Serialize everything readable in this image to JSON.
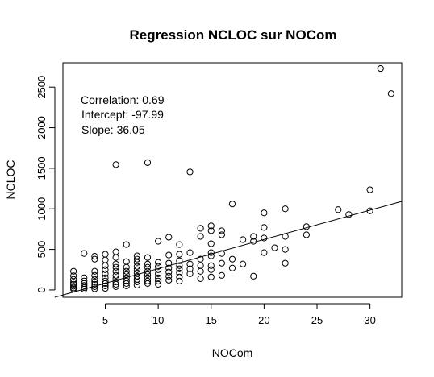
{
  "chart_data": {
    "type": "scatter",
    "title": "Regression NCLOC sur NOCom",
    "xlabel": "NOCom",
    "ylabel": "NCLOC",
    "xlim": [
      1,
      33
    ],
    "ylim": [
      -90,
      2800
    ],
    "x_ticks": [
      5,
      10,
      15,
      20,
      25,
      30
    ],
    "y_ticks": [
      0,
      500,
      1000,
      1500,
      2000,
      2500
    ],
    "annotations": [
      "Correlation: 0.69",
      "Intercept: -97.99",
      "Slope: 36.05"
    ],
    "regression": {
      "intercept": -97.99,
      "slope": 36.05
    },
    "marker": "open-circle",
    "grid": false,
    "points": [
      [
        2,
        230
      ],
      [
        2,
        175
      ],
      [
        2,
        130
      ],
      [
        2,
        95
      ],
      [
        2,
        70
      ],
      [
        2,
        45
      ],
      [
        2,
        25
      ],
      [
        2,
        10
      ],
      [
        3,
        450
      ],
      [
        3,
        150
      ],
      [
        3,
        110
      ],
      [
        3,
        80
      ],
      [
        3,
        55
      ],
      [
        3,
        30
      ],
      [
        3,
        10
      ],
      [
        4,
        415
      ],
      [
        4,
        380
      ],
      [
        4,
        230
      ],
      [
        4,
        180
      ],
      [
        4,
        130
      ],
      [
        4,
        100
      ],
      [
        4,
        70
      ],
      [
        4,
        40
      ],
      [
        4,
        15
      ],
      [
        5,
        440
      ],
      [
        5,
        370
      ],
      [
        5,
        300
      ],
      [
        5,
        250
      ],
      [
        5,
        200
      ],
      [
        5,
        150
      ],
      [
        5,
        110
      ],
      [
        5,
        80
      ],
      [
        5,
        50
      ],
      [
        5,
        20
      ],
      [
        6,
        1545
      ],
      [
        6,
        470
      ],
      [
        6,
        400
      ],
      [
        6,
        320
      ],
      [
        6,
        280
      ],
      [
        6,
        230
      ],
      [
        6,
        180
      ],
      [
        6,
        140
      ],
      [
        6,
        100
      ],
      [
        6,
        70
      ],
      [
        6,
        40
      ],
      [
        7,
        560
      ],
      [
        7,
        350
      ],
      [
        7,
        280
      ],
      [
        7,
        230
      ],
      [
        7,
        190
      ],
      [
        7,
        150
      ],
      [
        7,
        110
      ],
      [
        7,
        80
      ],
      [
        7,
        50
      ],
      [
        8,
        420
      ],
      [
        8,
        380
      ],
      [
        8,
        340
      ],
      [
        8,
        290
      ],
      [
        8,
        250
      ],
      [
        8,
        210
      ],
      [
        8,
        170
      ],
      [
        8,
        130
      ],
      [
        8,
        100
      ],
      [
        8,
        60
      ],
      [
        9,
        1570
      ],
      [
        9,
        400
      ],
      [
        9,
        320
      ],
      [
        9,
        280
      ],
      [
        9,
        230
      ],
      [
        9,
        190
      ],
      [
        9,
        150
      ],
      [
        9,
        110
      ],
      [
        9,
        80
      ],
      [
        10,
        600
      ],
      [
        10,
        340
      ],
      [
        10,
        290
      ],
      [
        10,
        250
      ],
      [
        10,
        200
      ],
      [
        10,
        150
      ],
      [
        10,
        110
      ],
      [
        10,
        70
      ],
      [
        11,
        650
      ],
      [
        11,
        430
      ],
      [
        11,
        330
      ],
      [
        11,
        270
      ],
      [
        11,
        220
      ],
      [
        11,
        170
      ],
      [
        11,
        120
      ],
      [
        12,
        560
      ],
      [
        12,
        440
      ],
      [
        12,
        360
      ],
      [
        12,
        300
      ],
      [
        12,
        260
      ],
      [
        12,
        210
      ],
      [
        12,
        160
      ],
      [
        12,
        110
      ],
      [
        13,
        1455
      ],
      [
        13,
        460
      ],
      [
        13,
        320
      ],
      [
        13,
        260
      ],
      [
        13,
        200
      ],
      [
        14,
        760
      ],
      [
        14,
        660
      ],
      [
        14,
        380
      ],
      [
        14,
        300
      ],
      [
        14,
        230
      ],
      [
        14,
        140
      ],
      [
        15,
        790
      ],
      [
        15,
        730
      ],
      [
        15,
        570
      ],
      [
        15,
        460
      ],
      [
        15,
        420
      ],
      [
        15,
        300
      ],
      [
        15,
        250
      ],
      [
        15,
        160
      ],
      [
        16,
        730
      ],
      [
        16,
        680
      ],
      [
        16,
        450
      ],
      [
        16,
        330
      ],
      [
        16,
        180
      ],
      [
        17,
        1060
      ],
      [
        17,
        380
      ],
      [
        17,
        270
      ],
      [
        18,
        620
      ],
      [
        18,
        320
      ],
      [
        19,
        660
      ],
      [
        19,
        600
      ],
      [
        19,
        170
      ],
      [
        20,
        950
      ],
      [
        20,
        770
      ],
      [
        20,
        640
      ],
      [
        20,
        460
      ],
      [
        21,
        520
      ],
      [
        22,
        1000
      ],
      [
        22,
        660
      ],
      [
        22,
        500
      ],
      [
        22,
        330
      ],
      [
        24,
        780
      ],
      [
        24,
        680
      ],
      [
        27,
        990
      ],
      [
        28,
        930
      ],
      [
        30,
        1235
      ],
      [
        30,
        975
      ],
      [
        31,
        2730
      ],
      [
        32,
        2420
      ]
    ]
  }
}
